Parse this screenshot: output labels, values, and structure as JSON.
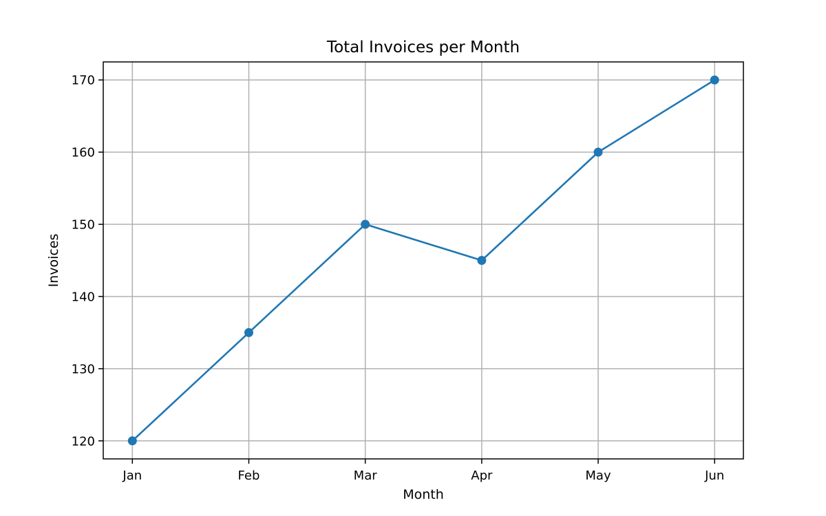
{
  "chart_data": {
    "type": "line",
    "title": "Total Invoices per Month",
    "xlabel": "Month",
    "ylabel": "Invoices",
    "categories": [
      "Jan",
      "Feb",
      "Mar",
      "Apr",
      "May",
      "Jun"
    ],
    "series": [
      {
        "values": [
          120,
          135,
          150,
          145,
          160,
          170
        ],
        "color": "#1f77b4",
        "marker": "circle"
      }
    ],
    "ylim": [
      117.5,
      172.5
    ],
    "yticks": [
      120,
      130,
      140,
      150,
      160,
      170
    ],
    "grid": true,
    "grid_color": "#b0b0b0",
    "legend": "none"
  }
}
